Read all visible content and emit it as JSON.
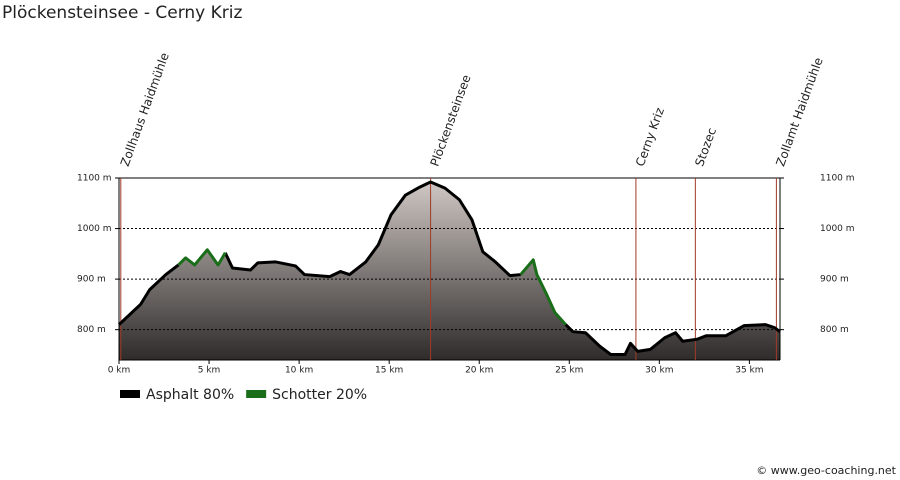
{
  "chart_data": {
    "type": "elevation-profile",
    "title": "Plöckensteinsee - Cerny Kriz",
    "credit": "© www.geo-coaching.net",
    "x": [
      0,
      0.6,
      1.2,
      1.7,
      2.6,
      3.3,
      3.7,
      4.2,
      4.9,
      5.5,
      5.9,
      6.3,
      7.3,
      7.7,
      8.7,
      9.8,
      10.3,
      11.7,
      12.3,
      12.8,
      13.7,
      14.4,
      15.1,
      15.9,
      16.7,
      17.3,
      18.1,
      18.9,
      19.6,
      20.2,
      20.9,
      21.7,
      22.3,
      23.0,
      23.2,
      23.7,
      24.2,
      24.8,
      25.2,
      25.9,
      26.7,
      27.3,
      28.1,
      28.4,
      28.8,
      29.5,
      30.3,
      30.9,
      31.3,
      32.1,
      32.6,
      33.7,
      34.3,
      34.7,
      35.9,
      36.4,
      36.7
    ],
    "series": [
      {
        "name": "Asphalt 80%",
        "color": "#000000",
        "values": [
          810,
          830,
          850,
          879,
          909,
          928,
          null,
          null,
          null,
          null,
          952,
          922,
          918,
          932,
          934,
          926,
          909,
          905,
          915,
          909,
          934,
          968,
          1027,
          1066,
          1082,
          1092,
          1080,
          1057,
          1017,
          954,
          934,
          907,
          909,
          null,
          null,
          null,
          null,
          810,
          796,
          794,
          767,
          751,
          751,
          773,
          757,
          761,
          784,
          794,
          777,
          781,
          788,
          788,
          800,
          808,
          810,
          804,
          796
        ]
      },
      {
        "name": "Schotter 20%",
        "color": "#1a6e1a",
        "values": [
          null,
          null,
          null,
          null,
          null,
          928,
          942,
          928,
          958,
          928,
          952,
          null,
          null,
          null,
          null,
          null,
          null,
          null,
          null,
          null,
          null,
          null,
          null,
          null,
          null,
          null,
          null,
          null,
          null,
          null,
          null,
          null,
          909,
          938,
          909,
          873,
          834,
          810,
          null,
          null,
          null,
          null,
          null,
          null,
          null,
          null,
          null,
          null,
          null,
          null,
          null,
          null,
          null,
          null,
          null,
          null,
          null
        ]
      }
    ],
    "markers": [
      {
        "label": "Zollhaus Haidmühle",
        "x": 0.1
      },
      {
        "label": "Plöckensteinsee",
        "x": 17.3
      },
      {
        "label": "Cerny Kriz",
        "x": 28.7
      },
      {
        "label": "Stozec",
        "x": 32.0
      },
      {
        "label": "Zollamt Haidmühle",
        "x": 36.5
      }
    ],
    "xlim": [
      0,
      36.7
    ],
    "ylim": [
      740,
      1100
    ],
    "xticks": [
      {
        "value": 0,
        "label": "0 km"
      },
      {
        "value": 5,
        "label": "5 km"
      },
      {
        "value": 10,
        "label": "10 km"
      },
      {
        "value": 15,
        "label": "15 km"
      },
      {
        "value": 20,
        "label": "20 km"
      },
      {
        "value": 25,
        "label": "25 km"
      },
      {
        "value": 30,
        "label": "30 km"
      },
      {
        "value": 35,
        "label": "35 km"
      }
    ],
    "yticks": [
      {
        "value": 800,
        "label": "800 m"
      },
      {
        "value": 900,
        "label": "900 m"
      },
      {
        "value": 1000,
        "label": "1000 m"
      },
      {
        "value": 1100,
        "label": "1100 m"
      }
    ],
    "grid": true
  }
}
